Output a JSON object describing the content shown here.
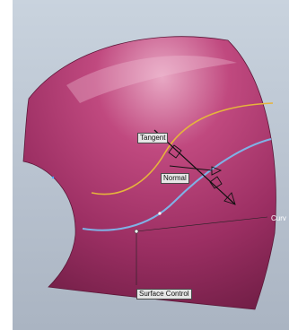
{
  "viewport": {
    "background_top": "#c9d3de",
    "background_bottom": "#aab4c2"
  },
  "surface": {
    "color": "#9c2f63",
    "highlight": "#e29ab9",
    "shadow": "#6e1d44"
  },
  "curves": {
    "tangent_curve_color": "#e6b43c",
    "normal_curve_color": "#7fb2e6"
  },
  "labels": {
    "tangent": "Tangent",
    "normal": "Normal",
    "curve": "Curv",
    "surface_control": "Surface Control"
  }
}
